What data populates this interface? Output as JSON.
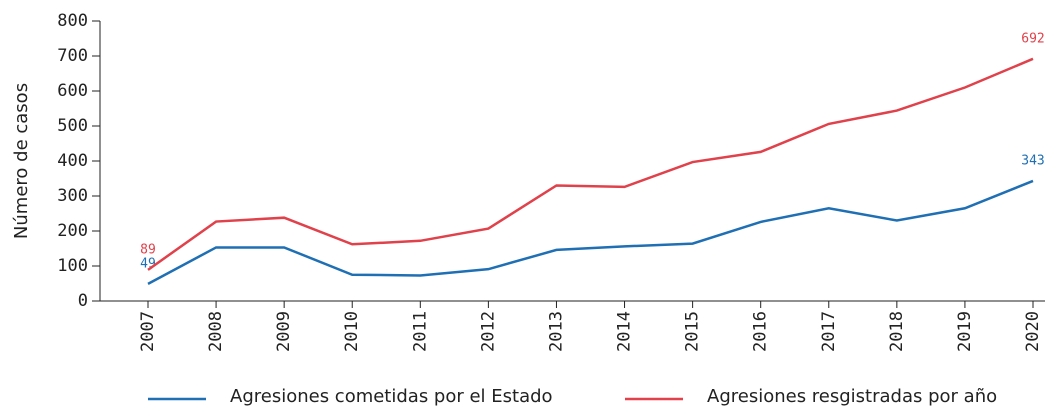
{
  "chart_data": {
    "type": "line",
    "y_label": "Número de casos",
    "x": [
      "2007",
      "2008",
      "2009",
      "2010",
      "2011",
      "2012",
      "2013",
      "2014",
      "2015",
      "2016",
      "2017",
      "2018",
      "2019",
      "2020"
    ],
    "series": [
      {
        "name": "Agresiones cometidas por el Estado",
        "color": "#1f6fb4",
        "values": [
          49,
          153,
          153,
          75,
          73,
          91,
          146,
          156,
          164,
          226,
          265,
          230,
          265,
          343
        ]
      },
      {
        "name": "Agresiones resgistradas por año",
        "color": "#e0414a",
        "values": [
          89,
          227,
          238,
          162,
          172,
          207,
          330,
          326,
          397,
          426,
          506,
          544,
          610,
          692
        ]
      }
    ],
    "ylim": [
      0,
      800
    ],
    "yticks": [
      0,
      100,
      200,
      300,
      400,
      500,
      600,
      700,
      800
    ],
    "grid": false,
    "legend": "bottom"
  }
}
